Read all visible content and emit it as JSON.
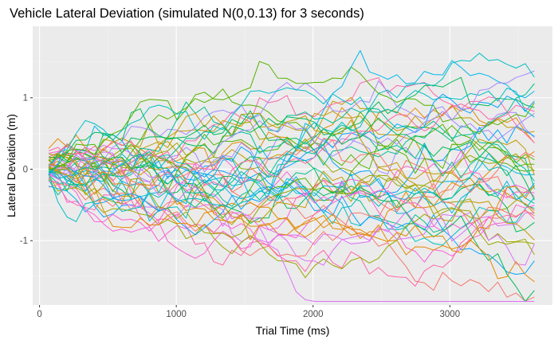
{
  "chart_data": {
    "type": "line",
    "title": "Vehicle Lateral Deviation (simulated N(0,0.13) for 3 seconds)",
    "xlabel": "Trial Time (ms)",
    "ylabel": "Lateral Deviation (m)",
    "xlim": [
      -50,
      3750
    ],
    "ylim": [
      -1.9,
      2.0
    ],
    "xticks": [
      0,
      1000,
      2000,
      3000
    ],
    "xtick_labels": [
      "0",
      "1000",
      "2000",
      "3000"
    ],
    "yticks": [
      -1,
      0,
      1
    ],
    "ytick_labels": [
      "-1",
      "0",
      "1"
    ],
    "grid": true,
    "legend": "none",
    "x_start": 67,
    "x_step": 67,
    "n_points": 54,
    "n_series": 50,
    "noise_sd": 0.13,
    "palette": [
      "#F8766D",
      "#E38900",
      "#C49A00",
      "#99A800",
      "#53B400",
      "#00BC56",
      "#00C094",
      "#00BFC4",
      "#00B6EB",
      "#06A4FF",
      "#A58AFF",
      "#DF70F8",
      "#FB61D7",
      "#FF66A8"
    ],
    "styling": {
      "panel_bg": "#EBEBEB",
      "major_grid": "#FFFFFF",
      "minor_grid": "#F4F4F4",
      "tick_color": "#333333"
    }
  }
}
